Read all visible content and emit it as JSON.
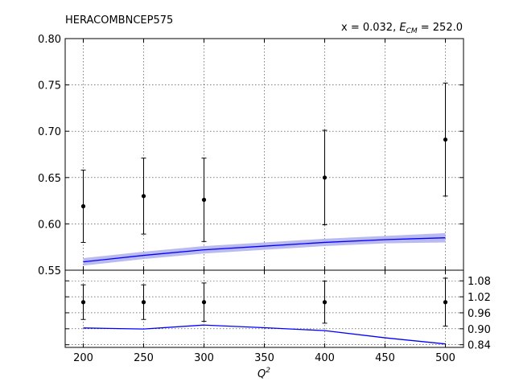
{
  "chart_data": [
    {
      "type": "line",
      "title": "HERACOMBNCEP575",
      "annotation": "x = 0.032, E_CM = 252.0",
      "annotation_parts": {
        "prefix": "x = 0.032, ",
        "E": "E",
        "sub": "CM",
        "suffix": " = 252.0"
      },
      "xlim": [
        185,
        515
      ],
      "ylim": [
        0.55,
        0.8
      ],
      "grid": true,
      "x_ticks": [
        200,
        250,
        300,
        350,
        400,
        450,
        500
      ],
      "y_ticks": [
        0.55,
        0.6,
        0.65,
        0.7,
        0.75,
        0.8
      ],
      "y_tick_labels": [
        "0.55",
        "0.60",
        "0.65",
        "0.70",
        "0.75",
        "0.80"
      ],
      "series": [
        {
          "kind": "errorbar",
          "color": "#000000",
          "x": [
            200,
            250,
            300,
            400,
            500
          ],
          "y": [
            0.619,
            0.63,
            0.626,
            0.65,
            0.691
          ],
          "err": [
            0.039,
            0.041,
            0.045,
            0.051,
            0.061
          ]
        },
        {
          "kind": "line_band",
          "color": "#0000ff",
          "band_color": "#b3b3f0",
          "x": [
            200,
            250,
            300,
            350,
            400,
            450,
            500
          ],
          "y": [
            0.559,
            0.566,
            0.572,
            0.576,
            0.58,
            0.583,
            0.585
          ],
          "band": [
            0.004,
            0.004,
            0.004,
            0.004,
            0.004,
            0.004,
            0.005
          ]
        }
      ]
    },
    {
      "type": "line",
      "xlim": [
        185,
        515
      ],
      "ylim": [
        0.83,
        1.12
      ],
      "grid": true,
      "xlabel": "Q²",
      "xlabel_parts": {
        "base": "Q",
        "sup": "2"
      },
      "x_ticks": [
        200,
        250,
        300,
        350,
        400,
        450,
        500
      ],
      "x_tick_labels": [
        "200",
        "250",
        "300",
        "350",
        "400",
        "450",
        "500"
      ],
      "y_ticks": [
        0.84,
        0.9,
        0.96,
        1.02,
        1.08
      ],
      "y_tick_labels": [
        "0.84",
        "0.90",
        "0.96",
        "1.02",
        "1.08"
      ],
      "y_axis_side": "right",
      "series": [
        {
          "kind": "errorbar",
          "color": "#000000",
          "x": [
            200,
            250,
            300,
            400,
            500
          ],
          "y": [
            1.0,
            1.0,
            1.0,
            1.0,
            1.0
          ],
          "err": [
            0.065,
            0.065,
            0.072,
            0.079,
            0.09
          ]
        },
        {
          "kind": "line",
          "color": "#0000ff",
          "x": [
            200,
            250,
            300,
            350,
            400,
            450,
            500
          ],
          "y": [
            0.903,
            0.899,
            0.914,
            0.904,
            0.893,
            0.866,
            0.843
          ]
        }
      ]
    }
  ]
}
